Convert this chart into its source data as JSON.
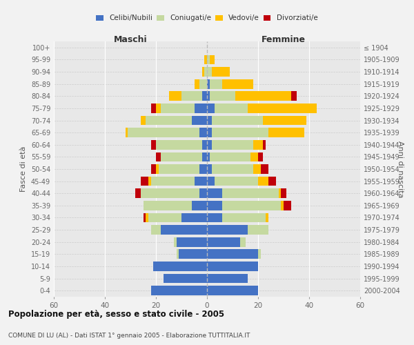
{
  "age_groups": [
    "100+",
    "95-99",
    "90-94",
    "85-89",
    "80-84",
    "75-79",
    "70-74",
    "65-69",
    "60-64",
    "55-59",
    "50-54",
    "45-49",
    "40-44",
    "35-39",
    "30-34",
    "25-29",
    "20-24",
    "15-19",
    "10-14",
    "5-9",
    "0-4"
  ],
  "birth_years": [
    "≤ 1904",
    "1905-1909",
    "1910-1914",
    "1915-1919",
    "1920-1924",
    "1925-1929",
    "1930-1934",
    "1935-1939",
    "1940-1944",
    "1945-1949",
    "1950-1954",
    "1955-1959",
    "1960-1964",
    "1965-1969",
    "1970-1974",
    "1975-1979",
    "1980-1984",
    "1985-1989",
    "1990-1994",
    "1995-1999",
    "2000-2004"
  ],
  "male_celibi": [
    0,
    0,
    0,
    0,
    2,
    5,
    6,
    3,
    2,
    2,
    3,
    5,
    3,
    6,
    10,
    18,
    12,
    11,
    21,
    17,
    22
  ],
  "male_coniugati": [
    0,
    0,
    1,
    3,
    8,
    13,
    18,
    28,
    18,
    16,
    16,
    17,
    23,
    19,
    13,
    4,
    1,
    1,
    0,
    0,
    0
  ],
  "male_vedovi": [
    0,
    1,
    1,
    2,
    5,
    2,
    2,
    1,
    0,
    0,
    1,
    1,
    0,
    0,
    1,
    0,
    0,
    0,
    0,
    0,
    0
  ],
  "male_divorziati": [
    0,
    0,
    0,
    0,
    0,
    2,
    0,
    0,
    2,
    2,
    2,
    3,
    2,
    0,
    1,
    0,
    0,
    0,
    0,
    0,
    0
  ],
  "female_nubili": [
    0,
    0,
    0,
    1,
    1,
    3,
    2,
    2,
    2,
    1,
    2,
    3,
    6,
    6,
    6,
    16,
    13,
    20,
    20,
    16,
    20
  ],
  "female_coniugate": [
    0,
    1,
    2,
    5,
    10,
    13,
    20,
    22,
    16,
    16,
    16,
    17,
    22,
    23,
    17,
    8,
    2,
    1,
    0,
    0,
    0
  ],
  "female_vedove": [
    0,
    2,
    7,
    12,
    22,
    27,
    17,
    14,
    4,
    3,
    3,
    4,
    1,
    1,
    1,
    0,
    0,
    0,
    0,
    0,
    0
  ],
  "female_divorziate": [
    0,
    0,
    0,
    0,
    2,
    0,
    0,
    0,
    1,
    2,
    3,
    3,
    2,
    3,
    0,
    0,
    0,
    0,
    0,
    0,
    0
  ],
  "color_celibi": "#4472c4",
  "color_coniugati": "#c5d9a0",
  "color_vedovi": "#ffc000",
  "color_divorziati": "#c0000b",
  "title": "Popolazione per età, sesso e stato civile - 2005",
  "subtitle": "COMUNE DI LU (AL) - Dati ISTAT 1° gennaio 2005 - Elaborazione TUTTITALIA.IT",
  "label_maschi": "Maschi",
  "label_femmine": "Femmine",
  "ylabel_left": "Fasce di età",
  "ylabel_right": "Anni di nascita",
  "legend_labels": [
    "Celibi/Nubili",
    "Coniugati/e",
    "Vedovi/e",
    "Divorziati/e"
  ],
  "xlim": 60,
  "bg_color": "#f2f2f2",
  "plot_bg": "#e8e8e8"
}
